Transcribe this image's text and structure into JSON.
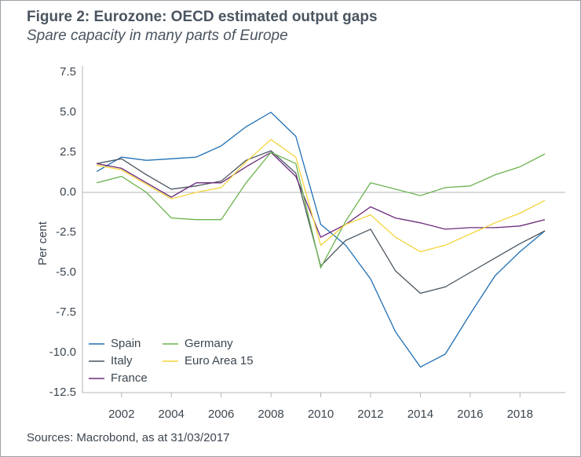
{
  "chart_data": {
    "type": "line",
    "title": "Figure 2: Eurozone: OECD estimated output gaps",
    "subtitle": "Spare capacity in many parts of Europe",
    "y_label": "Per cent",
    "source": "Sources: Macrobond, as at 31/03/2017",
    "x": [
      2001,
      2002,
      2003,
      2004,
      2005,
      2006,
      2007,
      2008,
      2009,
      2010,
      2011,
      2012,
      2013,
      2014,
      2015,
      2016,
      2017,
      2018,
      2019
    ],
    "series": [
      {
        "name": "Spain",
        "color": "#1f6fb4",
        "values": [
          1.3,
          2.2,
          2.0,
          2.1,
          2.2,
          2.9,
          4.1,
          5.0,
          3.5,
          -2.0,
          -3.3,
          -5.4,
          -8.7,
          -10.9,
          -10.1,
          -7.6,
          -5.2,
          -3.7,
          -2.4
        ]
      },
      {
        "name": "Italy",
        "color": "#4a5660",
        "values": [
          1.8,
          2.1,
          1.1,
          0.2,
          0.4,
          0.7,
          2.0,
          2.6,
          1.2,
          -4.6,
          -3.0,
          -2.3,
          -4.9,
          -6.3,
          -5.9,
          -5.0,
          -4.1,
          -3.2,
          -2.4
        ]
      },
      {
        "name": "France",
        "color": "#6b2a7c",
        "values": [
          1.8,
          1.5,
          0.6,
          -0.3,
          0.6,
          0.6,
          1.6,
          2.5,
          1.0,
          -2.8,
          -2.0,
          -0.9,
          -1.6,
          -1.9,
          -2.3,
          -2.2,
          -2.2,
          -2.1,
          -1.7
        ]
      },
      {
        "name": "Germany",
        "color": "#6bb34f",
        "values": [
          0.6,
          1.0,
          0.0,
          -1.6,
          -1.7,
          -1.7,
          0.6,
          2.5,
          1.8,
          -4.7,
          -1.8,
          0.6,
          0.2,
          -0.2,
          0.3,
          0.4,
          1.1,
          1.6,
          2.4
        ]
      },
      {
        "name": "Euro Area 15",
        "color": "#f4d43c",
        "values": [
          1.7,
          1.4,
          0.5,
          -0.4,
          0.0,
          0.3,
          1.9,
          3.3,
          2.2,
          -3.3,
          -2.0,
          -1.4,
          -2.8,
          -3.7,
          -3.3,
          -2.6,
          -1.9,
          -1.3,
          -0.5
        ]
      }
    ],
    "xlim": [
      2000.43,
      2019.82
    ],
    "xticks": [
      2002,
      2004,
      2006,
      2008,
      2010,
      2012,
      2014,
      2016,
      2018
    ],
    "ylim": [
      -12.5,
      7.5
    ],
    "yticks": [
      7.5,
      {
        "value": 5,
        "label": "5.0"
      },
      2.5,
      {
        "value": 0,
        "label": "0.0"
      },
      -2.5,
      {
        "value": -5,
        "label": "-5.0"
      },
      -7.5,
      {
        "value": -10,
        "label": "-10.0"
      },
      -12.5
    ],
    "zero_line": true,
    "legend": "bottom-left"
  }
}
